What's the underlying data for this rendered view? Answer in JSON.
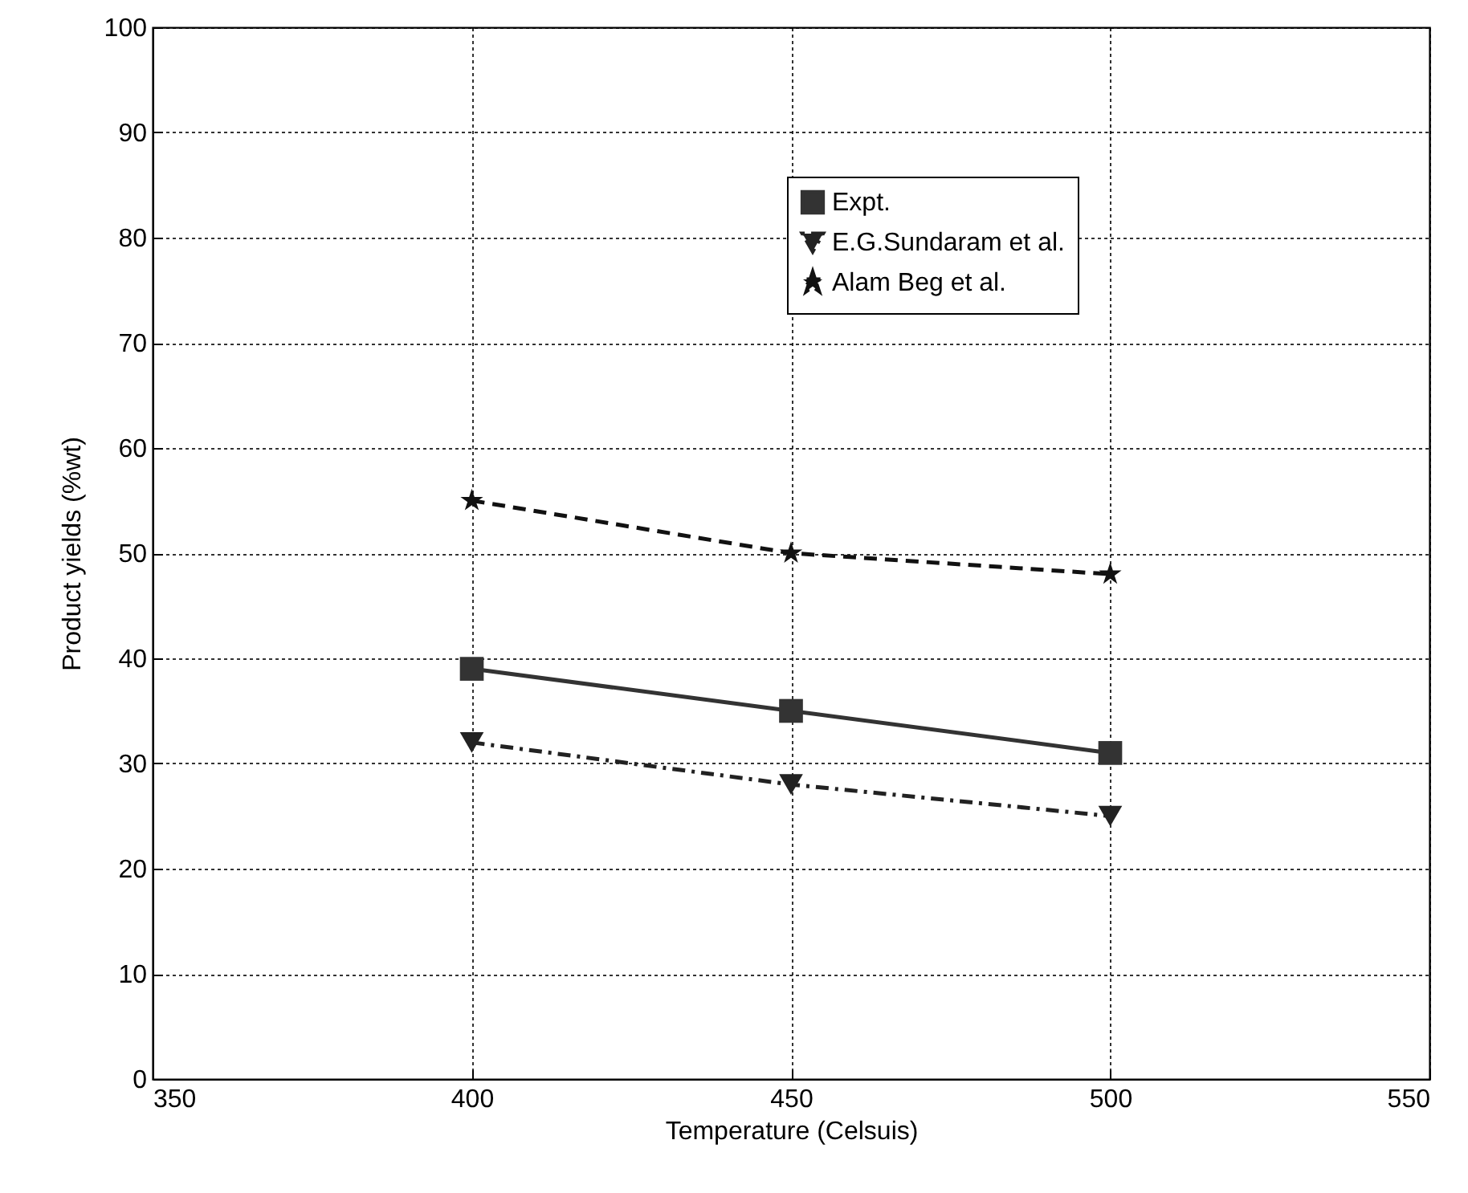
{
  "chart_data": {
    "type": "line",
    "xlabel": "Temperature (Celsuis)",
    "ylabel": "Product yields (%wt)",
    "x": [
      400,
      450,
      500
    ],
    "series": [
      {
        "name": "Expt.",
        "color": "#333333",
        "values": [
          39,
          35,
          31
        ],
        "marker": "square",
        "line_style": "solid"
      },
      {
        "name": "E.G.Sundaram et al.",
        "color": "#222222",
        "values": [
          32,
          28,
          25
        ],
        "marker": "triangle",
        "line_style": "dashdot"
      },
      {
        "name": "Alam Beg et al.",
        "color": "#111111",
        "values": [
          55,
          50,
          48
        ],
        "marker": "star",
        "line_style": "dashed"
      }
    ],
    "xlim": [
      350,
      550
    ],
    "xticks": [
      350,
      400,
      450,
      500,
      550
    ],
    "ylim": [
      0,
      100
    ],
    "yticks": [
      0,
      10,
      20,
      30,
      40,
      50,
      60,
      70,
      80,
      90,
      100
    ],
    "grid": true,
    "legend": "top right"
  }
}
